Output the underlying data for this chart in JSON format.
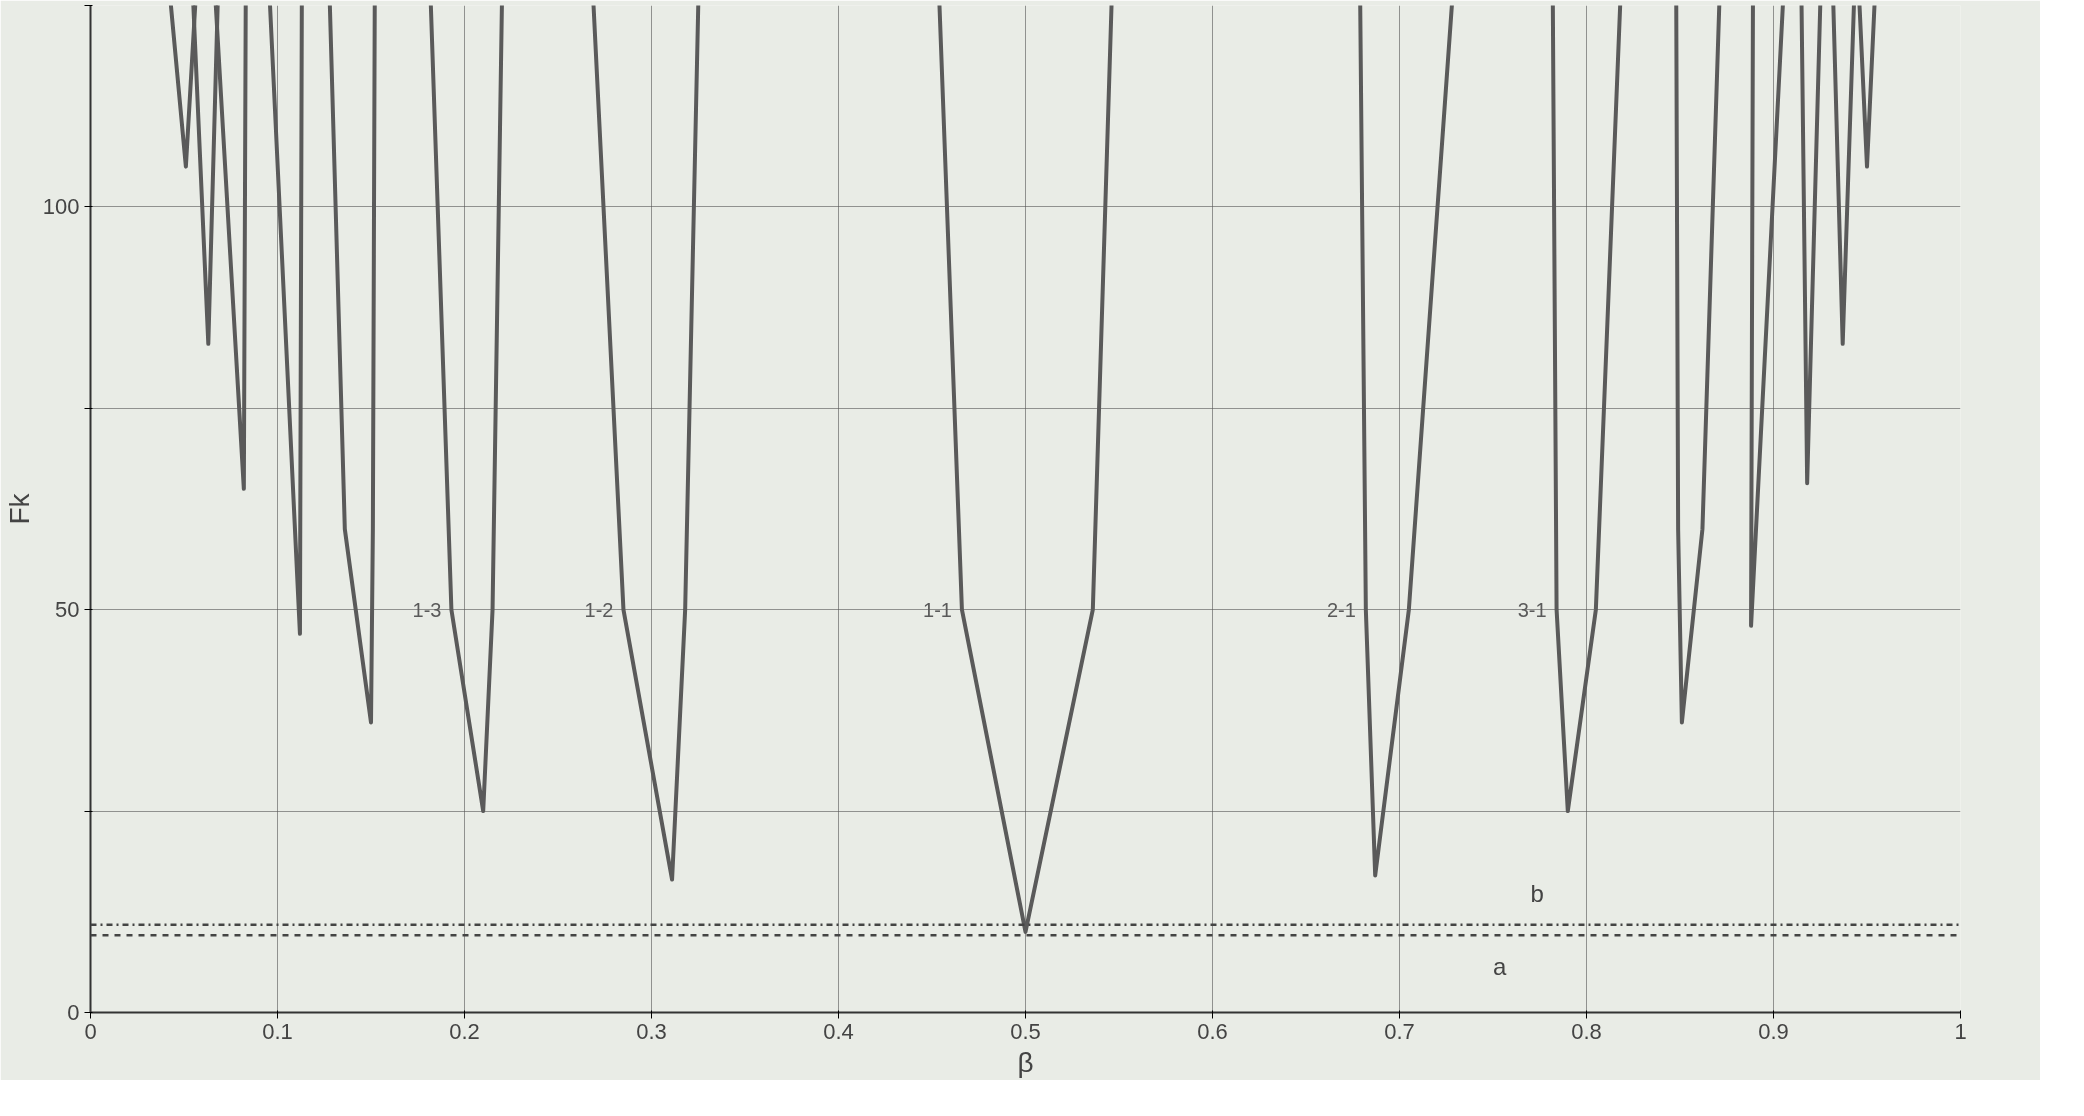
{
  "chart_data": {
    "type": "line",
    "xlabel": "β",
    "ylabel": "Fk",
    "xlim": [
      0,
      1
    ],
    "ylim": [
      0,
      125
    ],
    "xticks": [
      0,
      0.1,
      0.2,
      0.3,
      0.4,
      0.5,
      0.6,
      0.7,
      0.8,
      0.9,
      1
    ],
    "yticks": [
      0,
      {
        "value": 25,
        "label": null
      },
      50,
      {
        "value": 75,
        "label": null
      },
      100,
      {
        "value": 125,
        "label": null
      }
    ],
    "grid": true,
    "line_style": "solid",
    "series": [
      {
        "name": "1-1",
        "color": "#5a5a5a",
        "x": [
          0.454,
          0.466,
          0.5,
          0.536,
          0.546
        ],
        "values": [
          125,
          50,
          10,
          50,
          125
        ]
      },
      {
        "name": "1-2",
        "color": "#5a5a5a",
        "x": [
          0.269,
          0.285,
          0.311,
          0.318,
          0.325
        ],
        "values": [
          125,
          50,
          16.5,
          50,
          125
        ]
      },
      {
        "name": "2-1",
        "color": "#5a5a5a",
        "x": [
          0.679,
          0.682,
          0.687,
          0.705,
          0.728
        ],
        "values": [
          125,
          50,
          17,
          50,
          125
        ]
      },
      {
        "name": "1-3",
        "color": "#5a5a5a",
        "x": [
          0.182,
          0.193,
          0.21,
          0.215,
          0.22
        ],
        "values": [
          125,
          50,
          25,
          50,
          125
        ]
      },
      {
        "name": "3-1",
        "color": "#5a5a5a",
        "x": [
          0.782,
          0.784,
          0.79,
          0.805,
          0.818
        ],
        "values": [
          125,
          50,
          25,
          50,
          125
        ]
      },
      {
        "color": "#5a5a5a",
        "x": [
          0.128,
          0.136,
          0.15,
          0.151,
          0.152
        ],
        "values": [
          125,
          60,
          36,
          60,
          125
        ]
      },
      {
        "color": "#5a5a5a",
        "x": [
          0.848,
          0.849,
          0.851,
          0.862,
          0.871
        ],
        "values": [
          125,
          60,
          36,
          60,
          125
        ]
      },
      {
        "color": "#5a5a5a",
        "x": [
          0.096,
          0.112,
          0.113
        ],
        "values": [
          125,
          47,
          125
        ]
      },
      {
        "color": "#5a5a5a",
        "x": [
          0.889,
          0.888,
          0.905
        ],
        "values": [
          125,
          48,
          125
        ]
      },
      {
        "color": "#5a5a5a",
        "x": [
          0.067,
          0.082,
          0.083
        ],
        "values": [
          125,
          65,
          125
        ]
      },
      {
        "color": "#5a5a5a",
        "x": [
          0.915,
          0.918,
          0.925
        ],
        "values": [
          125,
          65.7,
          125
        ]
      },
      {
        "color": "#5a5a5a",
        "x": [
          0.055,
          0.063,
          0.068
        ],
        "values": [
          125,
          83,
          125
        ]
      },
      {
        "color": "#5a5a5a",
        "x": [
          0.932,
          0.937,
          0.943
        ],
        "values": [
          125,
          83,
          125
        ]
      },
      {
        "color": "#5a5a5a",
        "x": [
          0.043,
          0.051,
          0.056
        ],
        "values": [
          125,
          105,
          125
        ]
      },
      {
        "color": "#5a5a5a",
        "x": [
          0.946,
          0.95,
          0.954
        ],
        "values": [
          125,
          105,
          125
        ]
      }
    ],
    "ref_lines": [
      {
        "axis": "y",
        "value": 10.9,
        "label": "b",
        "line_style": "dashdot",
        "color": "#444444"
      },
      {
        "axis": "y",
        "value": 9.6,
        "label": "a",
        "line_style": "dashed",
        "color": "#444444"
      }
    ]
  }
}
